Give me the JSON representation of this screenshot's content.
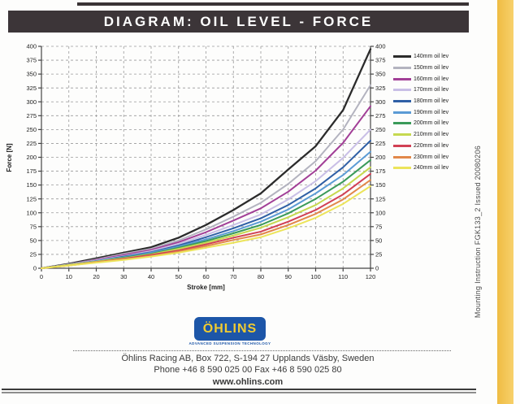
{
  "page": {
    "title": "DIAGRAM: OIL LEVEL - FORCE",
    "side_note": "Mounting Instruction FGK133_2  Issued 20080206"
  },
  "logo": {
    "name": "ÖHLINS",
    "tagline": "ADVANCED SUSPENSION TECHNOLOGY",
    "bg_color": "#1d56a8",
    "text_color": "#f2cc30"
  },
  "footer": {
    "address": "Öhlins Racing AB, Box 722, S-194 27 Upplands Väsby, Sweden",
    "phone_fax": "Phone +46 8 590 025 00  Fax +46 8 590 025 80",
    "website": "www.ohlins.com"
  },
  "chart_data": {
    "type": "line",
    "title": "",
    "xlabel": "Stroke [mm]",
    "ylabel": "Force [N]",
    "xlim": [
      0,
      120
    ],
    "ylim": [
      0,
      400
    ],
    "x_ticks": [
      0,
      10,
      20,
      30,
      40,
      50,
      60,
      70,
      80,
      90,
      100,
      110,
      120
    ],
    "y_ticks": [
      0,
      25,
      50,
      75,
      100,
      125,
      150,
      175,
      200,
      225,
      250,
      275,
      300,
      325,
      350,
      375,
      400
    ],
    "grid": "dashed",
    "legend_position": "right",
    "axis_color": "#444444",
    "grid_color": "#9a9a9a",
    "x": [
      0,
      10,
      20,
      30,
      40,
      50,
      60,
      70,
      80,
      90,
      100,
      110,
      120
    ],
    "series": [
      {
        "name": "140mm oil lev",
        "color": "#2b2b2b",
        "values": [
          0,
          8,
          18,
          28,
          38,
          55,
          78,
          105,
          135,
          178,
          220,
          285,
          395
        ]
      },
      {
        "name": "150mm oil lev",
        "color": "#b3b3bf",
        "values": [
          0,
          7,
          16,
          26,
          35,
          50,
          70,
          93,
          118,
          152,
          193,
          250,
          330
        ]
      },
      {
        "name": "160mm oil lev",
        "color": "#a23f97",
        "values": [
          0,
          7,
          15,
          24,
          33,
          47,
          65,
          86,
          108,
          138,
          176,
          226,
          292
        ]
      },
      {
        "name": "170mm oil lev",
        "color": "#c9bfe6",
        "values": [
          0,
          7,
          14,
          22,
          31,
          44,
          60,
          78,
          97,
          124,
          157,
          199,
          250
        ]
      },
      {
        "name": "180mm oil lev",
        "color": "#2f5fa5",
        "values": [
          0,
          6,
          13,
          21,
          29,
          41,
          56,
          72,
          90,
          114,
          144,
          182,
          230
        ]
      },
      {
        "name": "190mm oil lev",
        "color": "#5b9bd5",
        "values": [
          0,
          6,
          13,
          20,
          28,
          39,
          52,
          67,
          84,
          106,
          135,
          168,
          210
        ]
      },
      {
        "name": "200mm oil lev",
        "color": "#3a9a59",
        "values": [
          0,
          6,
          12,
          19,
          26,
          37,
          49,
          63,
          78,
          99,
          125,
          156,
          195
        ]
      },
      {
        "name": "210mm oil lev",
        "color": "#c6d94f",
        "values": [
          0,
          6,
          12,
          18,
          25,
          35,
          46,
          59,
          73,
          92,
          114,
          144,
          182
        ]
      },
      {
        "name": "220mm oil lev",
        "color": "#d14054",
        "values": [
          0,
          5,
          11,
          17,
          24,
          32,
          43,
          55,
          66,
          84,
          105,
          133,
          170
        ]
      },
      {
        "name": "230mm oil lev",
        "color": "#e2884a",
        "values": [
          0,
          5,
          11,
          16,
          22,
          30,
          40,
          51,
          61,
          78,
          98,
          124,
          159
        ]
      },
      {
        "name": "240mm oil lev",
        "color": "#ece45a",
        "values": [
          0,
          5,
          10,
          15,
          21,
          28,
          37,
          46,
          56,
          72,
          91,
          116,
          148
        ]
      }
    ]
  }
}
